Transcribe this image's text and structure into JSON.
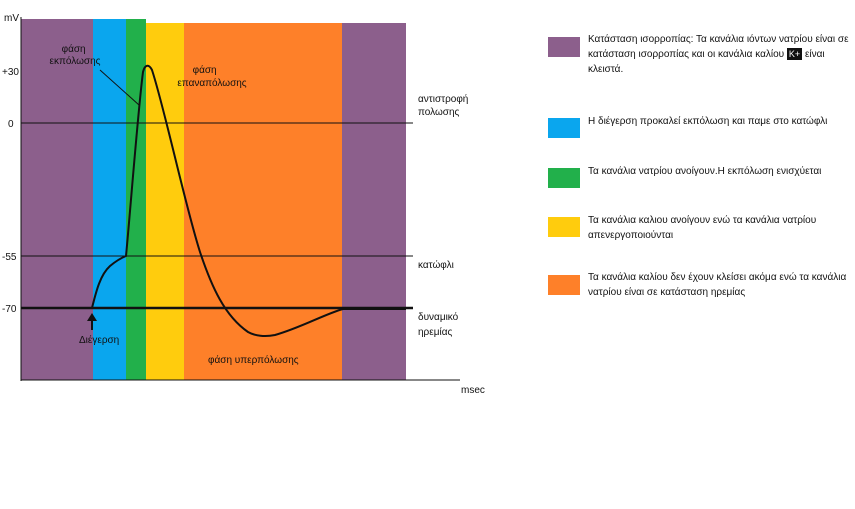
{
  "axes": {
    "y_unit": "mV",
    "x_unit": "msec",
    "y_ticks": [
      "+30",
      "0",
      "-55",
      "-70"
    ]
  },
  "reference_lines": {
    "zero": "αντιστροφή πολωσης",
    "threshold": "κατώφλι",
    "resting": "δυναμικό ηρεμίας"
  },
  "annotations": {
    "depolarization": "φάση εκπόλωσης",
    "repolarization": "φάση επαναπόλωσης",
    "hyperpolarization": "φάση υπερπόλωσης",
    "stimulus": "Διέγερση"
  },
  "colors": {
    "purple": "#8c5f8c",
    "blue": "#0aa6ee",
    "green": "#22b04b",
    "yellow": "#ffcc0d",
    "orange": "#fe8029"
  },
  "legend": {
    "items": [
      {
        "color": "#8c5f8c",
        "text_before": "Κατάσταση ισορροπίας: Τα κανάλια ιόντων νατρίου είναι σε κατάσταση ισορροπίας και οι κανάλια καλίου",
        "badge": "K+",
        "text_after": "είναι κλειστά."
      },
      {
        "color": "#0aa6ee",
        "text": "Η διέγερση προκαλεί εκπόλωση και παμε στο κατώφλι"
      },
      {
        "color": "#22b04b",
        "text": "Τα κανάλια νατρίου ανοίγουν.Η εκπόλωση ενισχύεται"
      },
      {
        "color": "#ffcc0d",
        "text": "Τα κανάλια καλιου ανοίγουν ενώ τα κανάλια νατρίου απενεργοποιούνται"
      },
      {
        "color": "#fe8029",
        "text": "Τα κανάλια καλίου δεν έχουν κλείσει ακόμα ενώ τα κανάλια νατρίου είναι σε κατάσταση ηρεμίας"
      }
    ]
  }
}
